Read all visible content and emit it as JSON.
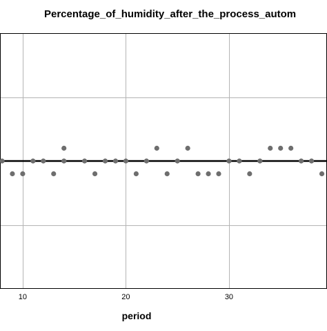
{
  "chart_data": {
    "type": "scatter",
    "title": "Percentage_of_humidity_after_the_process_autom",
    "xlabel": "period",
    "ylabel": "",
    "xlim": [
      7.8,
      39.5
    ],
    "ylim": [
      0,
      1
    ],
    "x_ticks": [
      10,
      20,
      30
    ],
    "x_tick_labels": [
      "10",
      "20",
      "30"
    ],
    "grid": true,
    "colors": {
      "points": "#6e6e6e",
      "fit_line": "#000000",
      "grid": "#b4b4b4",
      "frame": "#000000"
    },
    "fit_line": {
      "y": 0.5
    },
    "points": [
      {
        "x": 8,
        "y": 0.5
      },
      {
        "x": 9,
        "y": 0.45
      },
      {
        "x": 10,
        "y": 0.45
      },
      {
        "x": 11,
        "y": 0.5
      },
      {
        "x": 12,
        "y": 0.5
      },
      {
        "x": 13,
        "y": 0.45
      },
      {
        "x": 14,
        "y": 0.5
      },
      {
        "x": 14,
        "y": 0.55
      },
      {
        "x": 16,
        "y": 0.5
      },
      {
        "x": 17,
        "y": 0.45
      },
      {
        "x": 18,
        "y": 0.5
      },
      {
        "x": 19,
        "y": 0.5
      },
      {
        "x": 20,
        "y": 0.5
      },
      {
        "x": 21,
        "y": 0.45
      },
      {
        "x": 22,
        "y": 0.5
      },
      {
        "x": 23,
        "y": 0.55
      },
      {
        "x": 24,
        "y": 0.45
      },
      {
        "x": 25,
        "y": 0.5
      },
      {
        "x": 26,
        "y": 0.55
      },
      {
        "x": 27,
        "y": 0.45
      },
      {
        "x": 28,
        "y": 0.45
      },
      {
        "x": 29,
        "y": 0.45
      },
      {
        "x": 30,
        "y": 0.5
      },
      {
        "x": 31,
        "y": 0.5
      },
      {
        "x": 32,
        "y": 0.45
      },
      {
        "x": 33,
        "y": 0.5
      },
      {
        "x": 34,
        "y": 0.55
      },
      {
        "x": 35,
        "y": 0.55
      },
      {
        "x": 36,
        "y": 0.55
      },
      {
        "x": 37,
        "y": 0.5
      },
      {
        "x": 38,
        "y": 0.5
      },
      {
        "x": 39,
        "y": 0.45
      }
    ]
  }
}
